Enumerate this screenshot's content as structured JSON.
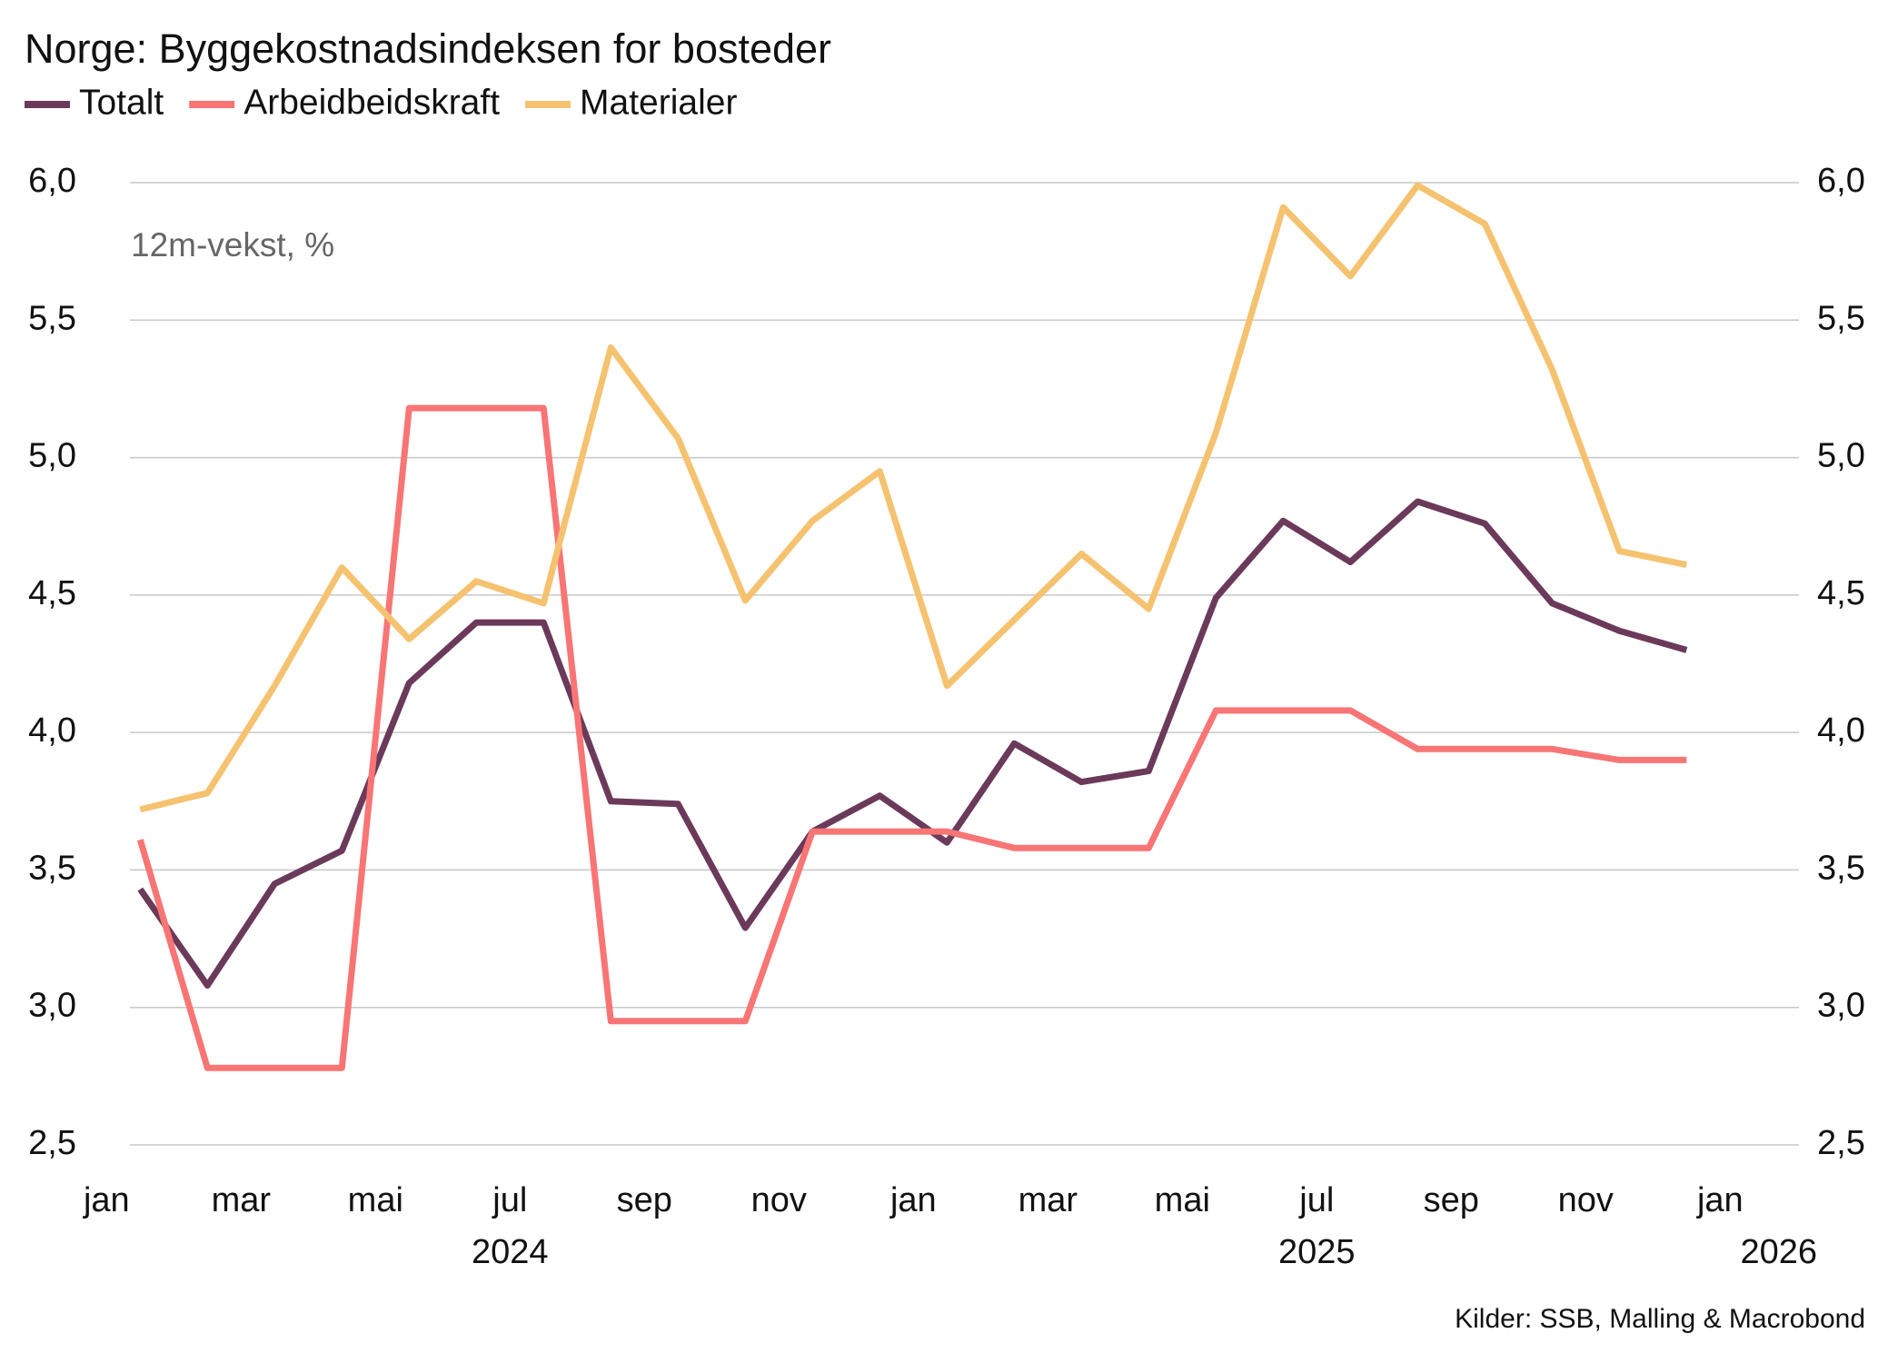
{
  "chart_data": {
    "type": "line",
    "title": "Norge: Byggekostnadsindeksen for bosteder",
    "annotation": "12m-vekst, %",
    "source": "Kilder: SSB, Malling & Macrobond",
    "x": [
      "2024-01",
      "2024-02",
      "2024-03",
      "2024-04",
      "2024-05",
      "2024-06",
      "2024-07",
      "2024-08",
      "2024-09",
      "2024-10",
      "2024-11",
      "2024-12",
      "2025-01",
      "2025-02",
      "2025-03",
      "2025-04",
      "2025-05",
      "2025-06",
      "2025-07",
      "2025-08",
      "2025-09",
      "2025-10",
      "2025-11",
      "2025-12"
    ],
    "series": [
      {
        "name": "Totalt",
        "color": "#6b3a5a",
        "values": [
          3.43,
          3.08,
          3.45,
          3.57,
          4.18,
          4.4,
          4.4,
          3.75,
          3.74,
          3.29,
          3.64,
          3.77,
          3.6,
          3.96,
          3.82,
          3.86,
          4.49,
          4.77,
          4.62,
          4.84,
          4.76,
          4.47,
          4.37,
          4.3
        ]
      },
      {
        "name": "Arbeidbeidskraft",
        "color": "#f87575",
        "values": [
          3.61,
          2.78,
          2.78,
          2.78,
          5.18,
          5.18,
          5.18,
          2.95,
          2.95,
          2.95,
          3.64,
          3.64,
          3.64,
          3.58,
          3.58,
          3.58,
          4.08,
          4.08,
          4.08,
          3.94,
          3.94,
          3.94,
          3.9,
          3.9
        ]
      },
      {
        "name": "Materialer",
        "color": "#f5c270",
        "values": [
          3.72,
          3.78,
          4.17,
          4.6,
          4.34,
          4.55,
          4.47,
          5.4,
          5.07,
          4.48,
          4.77,
          4.95,
          4.17,
          4.41,
          4.65,
          4.45,
          5.09,
          5.91,
          5.66,
          5.99,
          5.85,
          5.32,
          4.66,
          4.61
        ]
      }
    ],
    "xticks": [
      {
        "value": "2024-01",
        "label": "jan"
      },
      {
        "value": "2024-03",
        "label": "mar"
      },
      {
        "value": "2024-05",
        "label": "mai"
      },
      {
        "value": "2024-07",
        "label": "jul"
      },
      {
        "value": "2024-09",
        "label": "sep"
      },
      {
        "value": "2024-11",
        "label": "nov"
      },
      {
        "value": "2025-01",
        "label": "jan"
      },
      {
        "value": "2025-03",
        "label": "mar"
      },
      {
        "value": "2025-05",
        "label": "mai"
      },
      {
        "value": "2025-07",
        "label": "jul"
      },
      {
        "value": "2025-09",
        "label": "sep"
      },
      {
        "value": "2025-11",
        "label": "nov"
      },
      {
        "value": "2026-01",
        "label": "jan"
      }
    ],
    "year_labels": [
      {
        "value": "2024-07",
        "label": "2024"
      },
      {
        "value": "2025-07",
        "label": "2025"
      },
      {
        "value": "2026-01",
        "label": "2026"
      }
    ],
    "ylim": [
      2.5,
      6.0
    ],
    "yticks": [
      {
        "value": 2.5,
        "label": "2,5"
      },
      {
        "value": 3,
        "label": "3,0"
      },
      {
        "value": 3.5,
        "label": "3,5"
      },
      {
        "value": 4,
        "label": "4,0"
      },
      {
        "value": 4.5,
        "label": "4,5"
      },
      {
        "value": 5,
        "label": "5,0"
      },
      {
        "value": 5.5,
        "label": "5,5"
      },
      {
        "value": 6,
        "label": "6,0"
      }
    ],
    "y2lim": [
      2.5,
      6.0
    ],
    "y2ticks": [
      {
        "value": 2.5,
        "label": "2,5"
      },
      {
        "value": 3,
        "label": "3,0"
      },
      {
        "value": 3.5,
        "label": "3,5"
      },
      {
        "value": 4,
        "label": "4,0"
      },
      {
        "value": 4.5,
        "label": "4,5"
      },
      {
        "value": 5,
        "label": "5,0"
      },
      {
        "value": 5.5,
        "label": "5,5"
      },
      {
        "value": 6,
        "label": "6,0"
      }
    ],
    "grid": true
  }
}
